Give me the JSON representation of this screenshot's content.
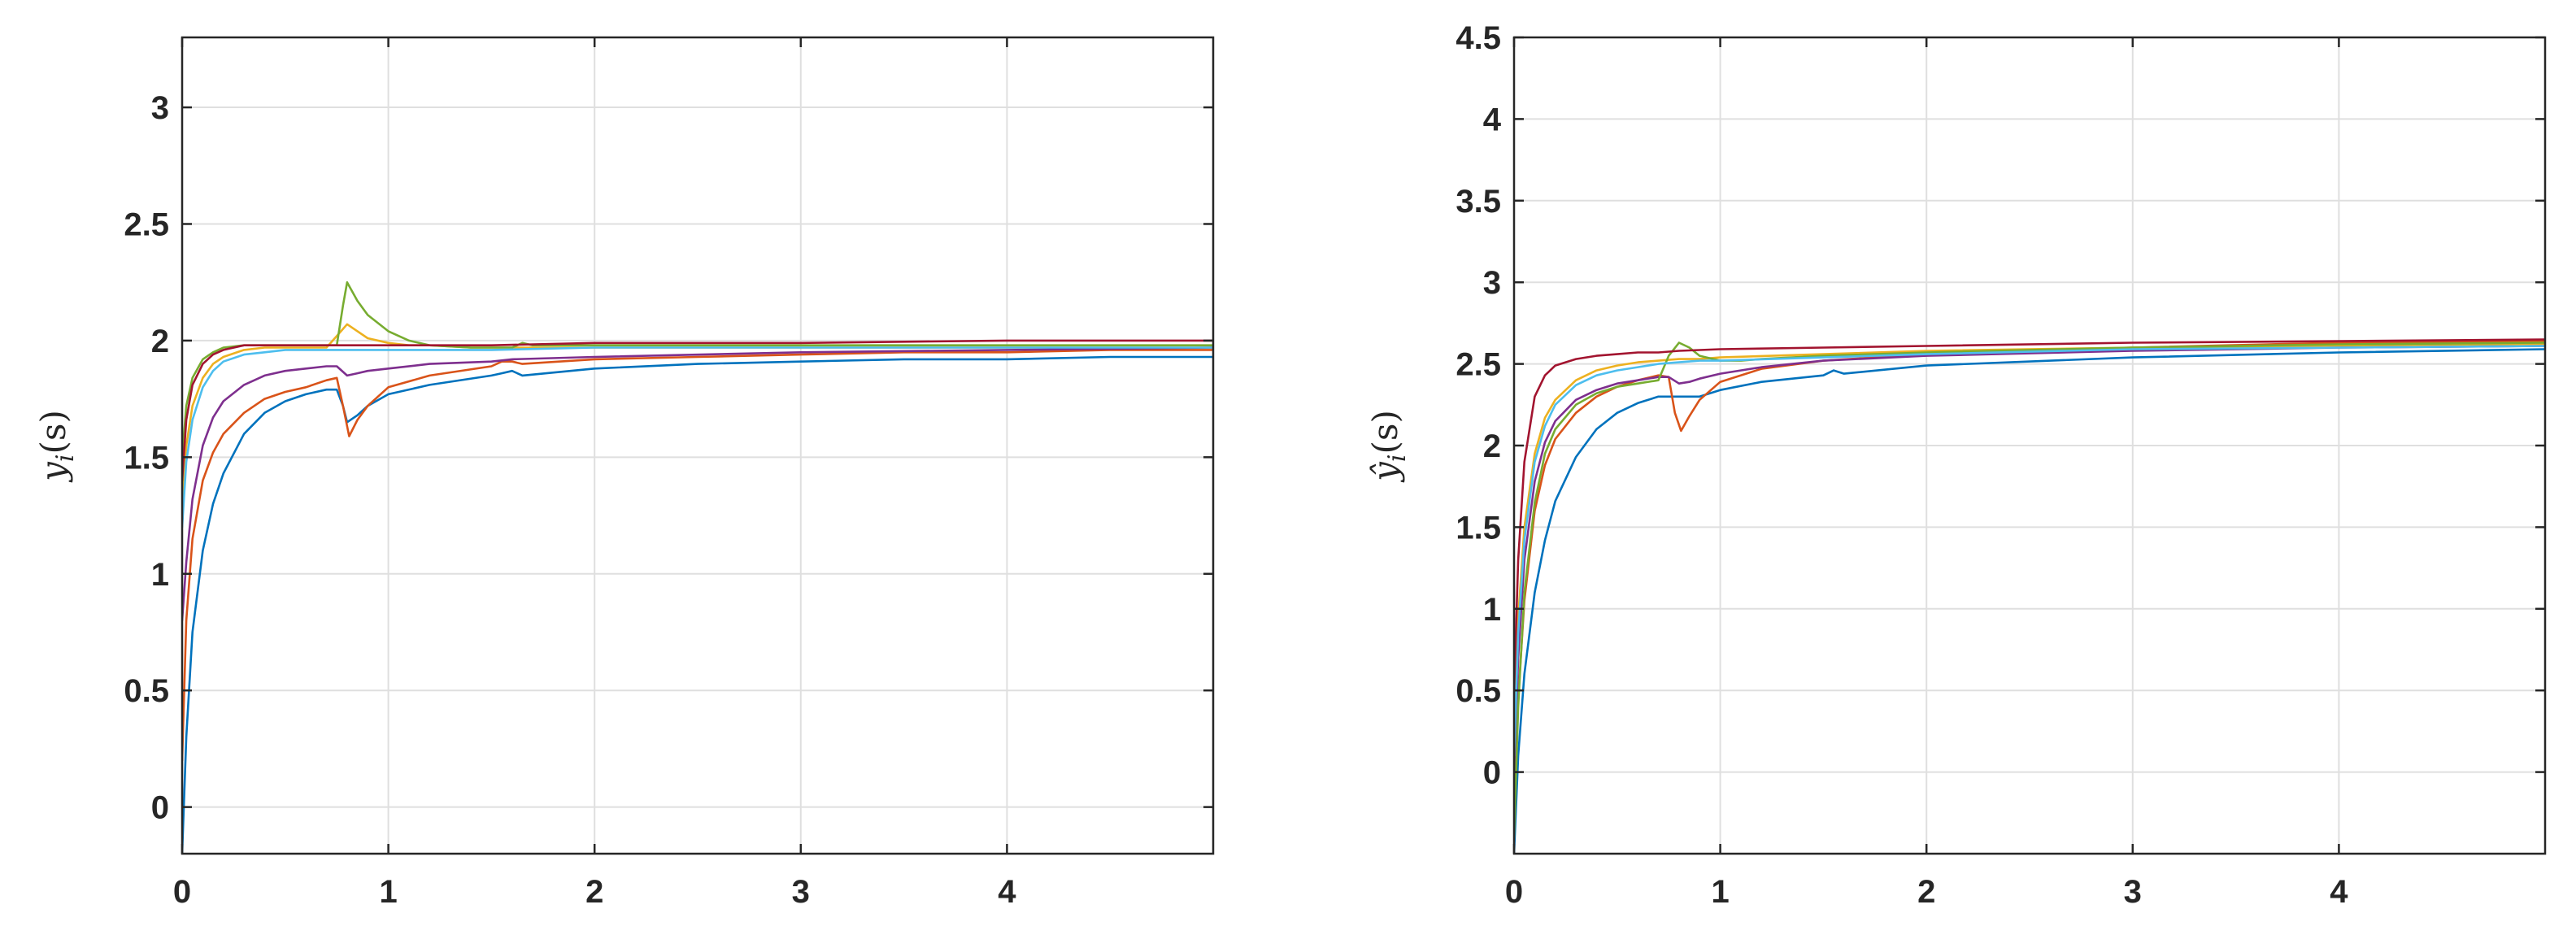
{
  "colors": [
    "#0072bd",
    "#d95319",
    "#edb120",
    "#7e2f8e",
    "#77ac30",
    "#4dbeee",
    "#a2142f"
  ],
  "chart_data": [
    {
      "type": "line",
      "ylabel": "y_i(s)",
      "ylabel_parts": [
        "y",
        "i",
        "(s)"
      ],
      "xlim": [
        0,
        5
      ],
      "ylim": [
        -0.2,
        3.3
      ],
      "xticks": [
        0,
        1,
        2,
        3,
        4
      ],
      "xtick_labels": [
        "0",
        "1",
        "2",
        "3",
        "4"
      ],
      "yticks": [
        0,
        0.5,
        1,
        1.5,
        2,
        2.5,
        3
      ],
      "ytick_labels": [
        "0",
        "0.5",
        "1",
        "1.5",
        "2",
        "2.5",
        "3"
      ],
      "grid": true,
      "series": [
        {
          "x": [
            0,
            0.02,
            0.05,
            0.1,
            0.15,
            0.2,
            0.3,
            0.4,
            0.5,
            0.6,
            0.7,
            0.75,
            0.78,
            0.8,
            0.85,
            0.9,
            1.0,
            1.2,
            1.5,
            1.55,
            1.6,
            1.65,
            2,
            2.5,
            3,
            3.5,
            4,
            4.5,
            5
          ],
          "y": [
            -0.2,
            0.3,
            0.75,
            1.1,
            1.3,
            1.43,
            1.6,
            1.69,
            1.74,
            1.77,
            1.79,
            1.79,
            1.72,
            1.65,
            1.68,
            1.72,
            1.77,
            1.81,
            1.85,
            1.86,
            1.87,
            1.85,
            1.88,
            1.9,
            1.91,
            1.92,
            1.92,
            1.93,
            1.93
          ]
        },
        {
          "x": [
            0,
            0.02,
            0.05,
            0.1,
            0.15,
            0.2,
            0.3,
            0.4,
            0.5,
            0.6,
            0.7,
            0.75,
            0.78,
            0.81,
            0.85,
            0.9,
            1.0,
            1.2,
            1.5,
            1.55,
            1.6,
            1.65,
            2,
            2.5,
            3,
            3.5,
            4,
            4.5,
            5
          ],
          "y": [
            0.2,
            0.8,
            1.15,
            1.4,
            1.52,
            1.6,
            1.69,
            1.75,
            1.78,
            1.8,
            1.83,
            1.84,
            1.72,
            1.59,
            1.66,
            1.72,
            1.8,
            1.85,
            1.89,
            1.91,
            1.91,
            1.9,
            1.92,
            1.93,
            1.94,
            1.95,
            1.95,
            1.96,
            1.96
          ]
        },
        {
          "x": [
            0,
            0.02,
            0.05,
            0.1,
            0.15,
            0.2,
            0.3,
            0.4,
            0.5,
            0.6,
            0.7,
            0.75,
            0.8,
            0.85,
            0.9,
            1.0,
            1.1,
            1.2,
            1.4,
            1.6,
            2,
            3,
            4,
            5
          ],
          "y": [
            1.3,
            1.55,
            1.72,
            1.84,
            1.9,
            1.93,
            1.96,
            1.97,
            1.97,
            1.97,
            1.97,
            2.02,
            2.07,
            2.04,
            2.01,
            1.99,
            1.98,
            1.98,
            1.97,
            1.97,
            1.97,
            1.97,
            1.97,
            1.97
          ]
        },
        {
          "x": [
            0,
            0.02,
            0.05,
            0.1,
            0.15,
            0.2,
            0.3,
            0.4,
            0.5,
            0.6,
            0.7,
            0.75,
            0.8,
            0.85,
            0.9,
            1.0,
            1.2,
            1.5,
            1.6,
            2,
            3,
            4,
            5
          ],
          "y": [
            0.8,
            1.05,
            1.32,
            1.55,
            1.67,
            1.74,
            1.81,
            1.85,
            1.87,
            1.88,
            1.89,
            1.89,
            1.85,
            1.86,
            1.87,
            1.88,
            1.9,
            1.91,
            1.92,
            1.93,
            1.95,
            1.96,
            1.97
          ]
        },
        {
          "x": [
            0,
            0.02,
            0.05,
            0.1,
            0.15,
            0.2,
            0.3,
            0.4,
            0.5,
            0.6,
            0.7,
            0.75,
            0.78,
            0.8,
            0.85,
            0.9,
            1.0,
            1.1,
            1.2,
            1.4,
            1.6,
            1.65,
            1.7,
            2,
            3,
            4,
            5
          ],
          "y": [
            1.5,
            1.72,
            1.84,
            1.92,
            1.95,
            1.97,
            1.98,
            1.98,
            1.98,
            1.98,
            1.98,
            1.98,
            2.15,
            2.25,
            2.17,
            2.11,
            2.04,
            2.0,
            1.98,
            1.97,
            1.97,
            1.99,
            1.98,
            1.98,
            1.98,
            1.98,
            1.98
          ]
        },
        {
          "x": [
            0,
            0.02,
            0.05,
            0.1,
            0.15,
            0.2,
            0.3,
            0.4,
            0.5,
            0.6,
            0.7,
            0.8,
            1.0,
            1.5,
            2,
            3,
            4,
            5
          ],
          "y": [
            1.2,
            1.48,
            1.66,
            1.8,
            1.87,
            1.91,
            1.94,
            1.95,
            1.96,
            1.96,
            1.96,
            1.96,
            1.96,
            1.96,
            1.97,
            1.97,
            1.97,
            1.97
          ]
        },
        {
          "x": [
            0,
            0.02,
            0.05,
            0.1,
            0.15,
            0.2,
            0.3,
            0.4,
            0.5,
            0.6,
            0.7,
            0.8,
            1.0,
            1.5,
            2,
            3,
            4,
            5
          ],
          "y": [
            1.4,
            1.66,
            1.81,
            1.9,
            1.94,
            1.96,
            1.98,
            1.98,
            1.98,
            1.98,
            1.98,
            1.98,
            1.98,
            1.98,
            1.99,
            1.99,
            2.0,
            2.0
          ]
        }
      ]
    },
    {
      "type": "line",
      "ylabel": "ŷ_i(s)",
      "ylabel_parts": [
        "ŷ",
        "i",
        "(s)"
      ],
      "xlim": [
        0,
        5
      ],
      "ylim": [
        -0.5,
        4.5
      ],
      "xticks": [
        0,
        1,
        2,
        3,
        4
      ],
      "xtick_labels": [
        "0",
        "1",
        "2",
        "3",
        "4"
      ],
      "yticks": [
        0,
        0.5,
        1,
        1.5,
        2,
        2.5,
        3,
        3.5,
        4,
        4.5
      ],
      "ytick_labels": [
        "0",
        "0.5",
        "1",
        "1.5",
        "2",
        "2.5",
        "3",
        "3.5",
        "4",
        "4.5"
      ],
      "grid": true,
      "series": [
        {
          "x": [
            0,
            0.02,
            0.05,
            0.1,
            0.15,
            0.2,
            0.3,
            0.4,
            0.5,
            0.6,
            0.7,
            0.8,
            0.9,
            1.0,
            1.2,
            1.5,
            1.55,
            1.6,
            2,
            3,
            4,
            5
          ],
          "y": [
            -0.5,
            0.1,
            0.6,
            1.1,
            1.42,
            1.66,
            1.93,
            2.1,
            2.2,
            2.26,
            2.3,
            2.3,
            2.3,
            2.34,
            2.39,
            2.43,
            2.46,
            2.44,
            2.49,
            2.54,
            2.57,
            2.59
          ]
        },
        {
          "x": [
            0,
            0.02,
            0.05,
            0.1,
            0.15,
            0.2,
            0.3,
            0.4,
            0.5,
            0.6,
            0.7,
            0.75,
            0.78,
            0.81,
            0.85,
            0.9,
            1.0,
            1.2,
            1.5,
            2,
            3,
            4,
            5
          ],
          "y": [
            -0.3,
            0.45,
            1.05,
            1.6,
            1.88,
            2.04,
            2.2,
            2.3,
            2.36,
            2.4,
            2.43,
            2.42,
            2.2,
            2.09,
            2.18,
            2.28,
            2.39,
            2.47,
            2.52,
            2.56,
            2.6,
            2.63,
            2.64
          ]
        },
        {
          "x": [
            0,
            0.02,
            0.05,
            0.1,
            0.15,
            0.2,
            0.3,
            0.4,
            0.5,
            0.6,
            0.7,
            0.8,
            0.9,
            1.0,
            1.5,
            2,
            3,
            4,
            5
          ],
          "y": [
            0.3,
            0.95,
            1.5,
            1.95,
            2.17,
            2.28,
            2.4,
            2.46,
            2.49,
            2.51,
            2.52,
            2.53,
            2.53,
            2.54,
            2.56,
            2.58,
            2.6,
            2.61,
            2.62
          ]
        },
        {
          "x": [
            0,
            0.02,
            0.05,
            0.1,
            0.15,
            0.2,
            0.3,
            0.4,
            0.5,
            0.6,
            0.7,
            0.75,
            0.8,
            0.85,
            0.9,
            1.0,
            1.2,
            1.5,
            2,
            3,
            4,
            5
          ],
          "y": [
            0.0,
            0.7,
            1.3,
            1.78,
            2.02,
            2.15,
            2.28,
            2.34,
            2.38,
            2.4,
            2.42,
            2.42,
            2.38,
            2.39,
            2.41,
            2.44,
            2.48,
            2.52,
            2.55,
            2.58,
            2.6,
            2.61
          ]
        },
        {
          "x": [
            0,
            0.02,
            0.05,
            0.1,
            0.15,
            0.2,
            0.3,
            0.4,
            0.5,
            0.6,
            0.7,
            0.75,
            0.8,
            0.85,
            0.9,
            1.0,
            1.1,
            1.2,
            1.5,
            2,
            3,
            4,
            5
          ],
          "y": [
            -0.4,
            0.4,
            1.1,
            1.65,
            1.95,
            2.1,
            2.25,
            2.32,
            2.36,
            2.38,
            2.4,
            2.55,
            2.63,
            2.6,
            2.55,
            2.52,
            2.52,
            2.53,
            2.55,
            2.57,
            2.6,
            2.62,
            2.63
          ]
        },
        {
          "x": [
            0,
            0.02,
            0.05,
            0.1,
            0.15,
            0.2,
            0.3,
            0.4,
            0.5,
            0.6,
            0.7,
            0.8,
            0.9,
            1.0,
            1.5,
            2,
            3,
            4,
            5
          ],
          "y": [
            0.1,
            0.85,
            1.42,
            1.9,
            2.12,
            2.25,
            2.37,
            2.43,
            2.46,
            2.48,
            2.5,
            2.51,
            2.52,
            2.52,
            2.54,
            2.56,
            2.59,
            2.6,
            2.61
          ]
        },
        {
          "x": [
            0,
            0.02,
            0.05,
            0.1,
            0.15,
            0.2,
            0.3,
            0.4,
            0.5,
            0.6,
            0.7,
            0.8,
            1.0,
            1.5,
            2,
            3,
            4,
            5
          ],
          "y": [
            0.5,
            1.3,
            1.9,
            2.3,
            2.43,
            2.49,
            2.53,
            2.55,
            2.56,
            2.57,
            2.57,
            2.58,
            2.59,
            2.6,
            2.61,
            2.63,
            2.64,
            2.65
          ]
        }
      ]
    }
  ]
}
